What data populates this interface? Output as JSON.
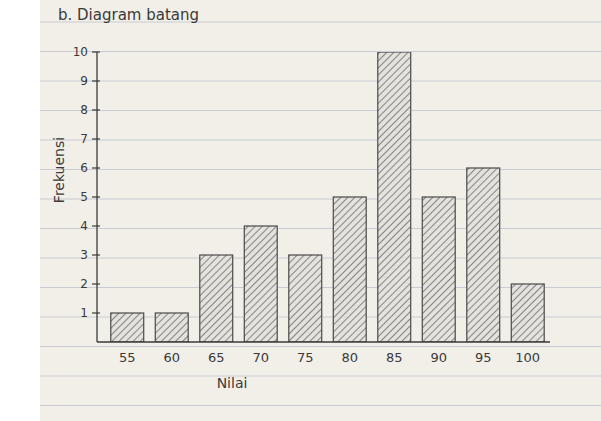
{
  "chart_data": {
    "type": "bar",
    "title": "b. Diagram batang",
    "x_label": "Nilai",
    "y_label": "Frekuensi",
    "categories": [
      "55",
      "60",
      "65",
      "70",
      "75",
      "80",
      "85",
      "90",
      "95",
      "100"
    ],
    "values": [
      1,
      1,
      3,
      4,
      3,
      5,
      10,
      5,
      6,
      2
    ],
    "color": "#6b6b6b",
    "ylim": [
      0,
      10
    ],
    "yticks": [
      1,
      2,
      3,
      4,
      5,
      6,
      7,
      8,
      9,
      10
    ],
    "grid": false
  }
}
